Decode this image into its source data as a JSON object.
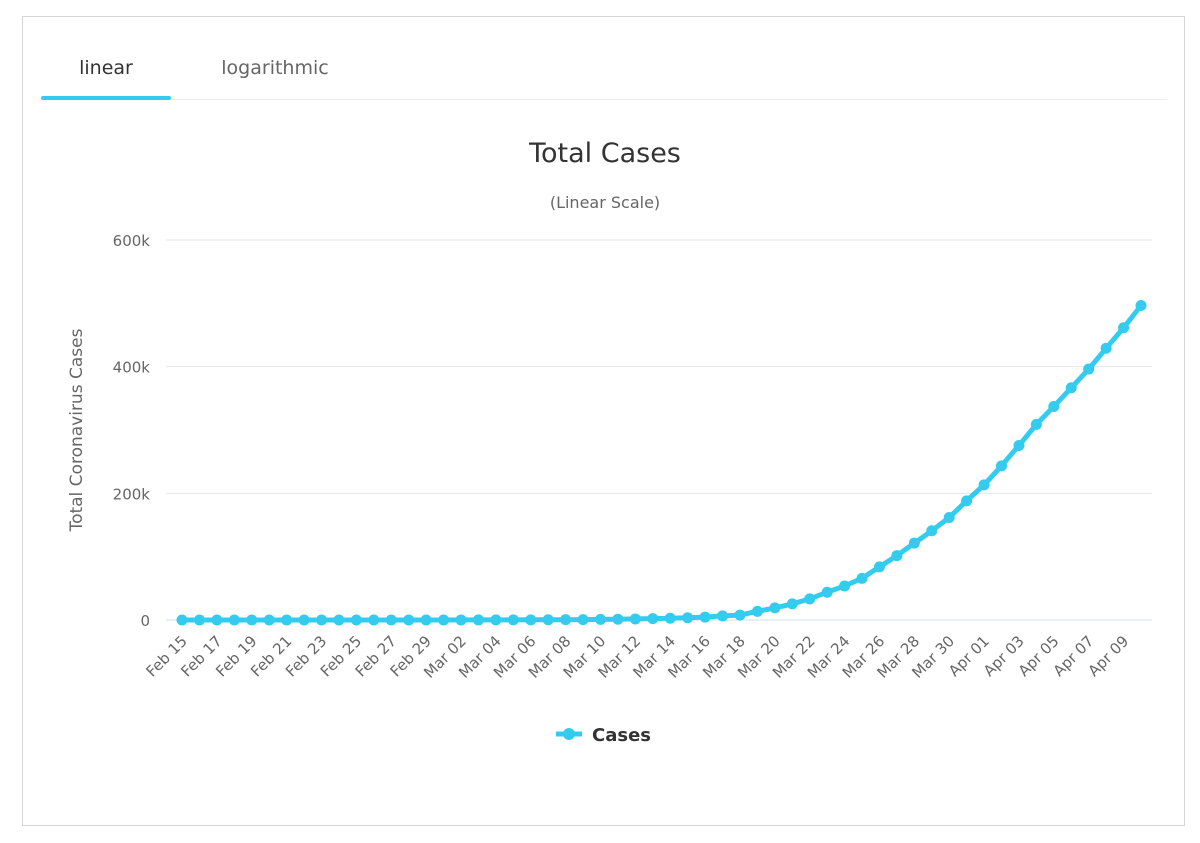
{
  "tabs": [
    {
      "label": "linear",
      "active": true
    },
    {
      "label": "logarithmic",
      "active": false
    }
  ],
  "colors": {
    "series": "#33ccee",
    "grid": "#e6e6e6",
    "text": "#666666"
  },
  "chart_data": {
    "type": "line",
    "title": "Total Cases",
    "subtitle": "(Linear Scale)",
    "xlabel": "",
    "ylabel": "Total Coronavirus Cases",
    "ylim": [
      0,
      600000
    ],
    "yticks": [
      0,
      200000,
      400000,
      600000
    ],
    "ytick_labels": [
      "0",
      "200k",
      "400k",
      "600k"
    ],
    "legend": "bottom-center",
    "categories": [
      "Feb 15",
      "Feb 16",
      "Feb 17",
      "Feb 18",
      "Feb 19",
      "Feb 20",
      "Feb 21",
      "Feb 22",
      "Feb 23",
      "Feb 24",
      "Feb 25",
      "Feb 26",
      "Feb 27",
      "Feb 28",
      "Feb 29",
      "Mar 01",
      "Mar 02",
      "Mar 03",
      "Mar 04",
      "Mar 05",
      "Mar 06",
      "Mar 07",
      "Mar 08",
      "Mar 09",
      "Mar 10",
      "Mar 11",
      "Mar 12",
      "Mar 13",
      "Mar 14",
      "Mar 15",
      "Mar 16",
      "Mar 17",
      "Mar 18",
      "Mar 19",
      "Mar 20",
      "Mar 21",
      "Mar 22",
      "Mar 23",
      "Mar 24",
      "Mar 25",
      "Mar 26",
      "Mar 27",
      "Mar 28",
      "Mar 29",
      "Mar 30",
      "Mar 31",
      "Apr 01",
      "Apr 02",
      "Apr 03",
      "Apr 04",
      "Apr 05",
      "Apr 06",
      "Apr 07",
      "Apr 08",
      "Apr 09",
      "Apr 10"
    ],
    "tick_labels": [
      "Feb 15",
      "Feb 17",
      "Feb 19",
      "Feb 21",
      "Feb 23",
      "Feb 25",
      "Feb 27",
      "Feb 29",
      "Mar 02",
      "Mar 04",
      "Mar 06",
      "Mar 08",
      "Mar 10",
      "Mar 12",
      "Mar 14",
      "Mar 16",
      "Mar 18",
      "Mar 20",
      "Mar 22",
      "Mar 24",
      "Mar 26",
      "Mar 28",
      "Mar 30",
      "Apr 01",
      "Apr 03",
      "Apr 05",
      "Apr 07",
      "Apr 09"
    ],
    "series": [
      {
        "name": "Cases",
        "values": [
          15,
          15,
          15,
          15,
          15,
          15,
          35,
          35,
          35,
          53,
          57,
          60,
          60,
          62,
          68,
          74,
          98,
          118,
          149,
          217,
          262,
          402,
          518,
          583,
          959,
          1281,
          1663,
          2179,
          2726,
          3499,
          4632,
          6421,
          7786,
          13680,
          19101,
          25493,
          33276,
          43847,
          53740,
          65778,
          83836,
          101657,
          121478,
          140886,
          161807,
          188172,
          213372,
          243453,
          275586,
          308850,
          337072,
          366667,
          396223,
          429052,
          461437,
          496535
        ]
      }
    ]
  }
}
